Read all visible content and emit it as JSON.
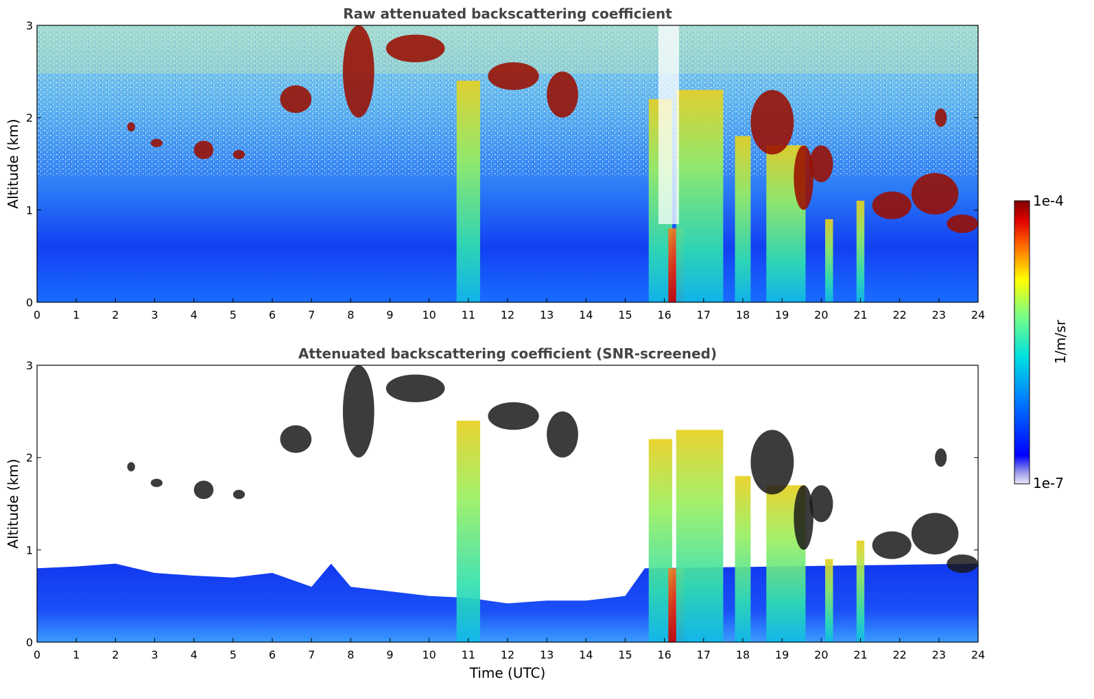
{
  "colorbar": {
    "max_label": "1e-4",
    "min_label": "1e-7",
    "unit": "1/m/sr",
    "colormap": "jet",
    "scale": "log",
    "range": [
      1e-07,
      0.0001
    ]
  },
  "chart_data": [
    {
      "type": "heatmap",
      "title": "Raw attenuated backscattering coefficient",
      "ylabel": "Altitude (km)",
      "xlabel": "",
      "xlim": [
        0,
        24
      ],
      "ylim": [
        0,
        3
      ],
      "x_ticks": [
        "0",
        "1",
        "2",
        "3",
        "4",
        "5",
        "6",
        "7",
        "8",
        "9",
        "10",
        "11",
        "12",
        "13",
        "14",
        "15",
        "16",
        "17",
        "18",
        "19",
        "20",
        "21",
        "22",
        "23",
        "24"
      ],
      "y_ticks": [
        "0",
        "1",
        "2",
        "3"
      ],
      "clouds": [
        {
          "t0": 6.2,
          "t1": 7.0,
          "z0": 2.05,
          "z1": 2.35
        },
        {
          "t0": 8.9,
          "t1": 10.4,
          "z0": 2.6,
          "z1": 2.9
        },
        {
          "t0": 4.0,
          "t1": 4.5,
          "z0": 1.55,
          "z1": 1.75
        },
        {
          "t0": 2.3,
          "t1": 2.5,
          "z0": 1.85,
          "z1": 1.95
        },
        {
          "t0": 2.9,
          "t1": 3.2,
          "z0": 1.68,
          "z1": 1.77
        },
        {
          "t0": 5.0,
          "t1": 5.3,
          "z0": 1.55,
          "z1": 1.65
        },
        {
          "t0": 7.8,
          "t1": 8.6,
          "z0": 2.0,
          "z1": 3.0
        },
        {
          "t0": 11.5,
          "t1": 12.8,
          "z0": 2.3,
          "z1": 2.6
        },
        {
          "t0": 13.0,
          "t1": 13.8,
          "z0": 2.0,
          "z1": 2.5
        },
        {
          "t0": 18.2,
          "t1": 19.3,
          "z0": 1.6,
          "z1": 2.3
        },
        {
          "t0": 19.3,
          "t1": 19.8,
          "z0": 1.0,
          "z1": 1.7
        },
        {
          "t0": 19.7,
          "t1": 20.3,
          "z0": 1.3,
          "z1": 1.7
        },
        {
          "t0": 21.3,
          "t1": 22.3,
          "z0": 0.9,
          "z1": 1.2
        },
        {
          "t0": 22.3,
          "t1": 23.5,
          "z0": 0.95,
          "z1": 1.4
        },
        {
          "t0": 23.2,
          "t1": 24.0,
          "z0": 0.75,
          "z1": 0.95
        },
        {
          "t0": 22.9,
          "t1": 23.2,
          "z0": 1.9,
          "z1": 2.1
        }
      ],
      "columns": [
        {
          "t0": 10.7,
          "t1": 11.3,
          "z1": 2.4
        },
        {
          "t0": 15.6,
          "t1": 16.2,
          "z1": 2.2
        },
        {
          "t0": 16.1,
          "t1": 16.5,
          "z1": 0.8
        },
        {
          "t0": 16.3,
          "t1": 17.5,
          "z1": 2.3
        },
        {
          "t0": 17.8,
          "t1": 18.2,
          "z1": 1.8
        },
        {
          "t0": 18.6,
          "t1": 19.6,
          "z1": 1.7
        },
        {
          "t0": 20.1,
          "t1": 20.3,
          "z1": 0.9
        },
        {
          "t0": 20.9,
          "t1": 21.1,
          "z1": 1.1
        }
      ]
    },
    {
      "type": "heatmap",
      "title": "Attenuated backscattering coefficient (SNR-screened)",
      "ylabel": "Altitude (km)",
      "xlabel": "Time (UTC)",
      "xlim": [
        0,
        24
      ],
      "ylim": [
        0,
        3
      ],
      "x_ticks": [
        "0",
        "1",
        "2",
        "3",
        "4",
        "5",
        "6",
        "7",
        "8",
        "9",
        "10",
        "11",
        "12",
        "13",
        "14",
        "15",
        "16",
        "17",
        "18",
        "19",
        "20",
        "21",
        "22",
        "23",
        "24"
      ],
      "y_ticks": [
        "0",
        "1",
        "2",
        "3"
      ],
      "boundary_layer_top_km": [
        [
          0,
          0.8
        ],
        [
          1,
          0.82
        ],
        [
          2,
          0.85
        ],
        [
          3,
          0.75
        ],
        [
          4,
          0.72
        ],
        [
          5,
          0.7
        ],
        [
          6,
          0.75
        ],
        [
          7,
          0.6
        ],
        [
          7.5,
          0.85
        ],
        [
          8,
          0.6
        ],
        [
          9,
          0.55
        ],
        [
          10,
          0.5
        ],
        [
          11,
          0.48
        ],
        [
          12,
          0.42
        ],
        [
          13,
          0.45
        ],
        [
          14,
          0.45
        ],
        [
          15,
          0.5
        ],
        [
          15.5,
          0.8
        ]
      ]
    }
  ]
}
